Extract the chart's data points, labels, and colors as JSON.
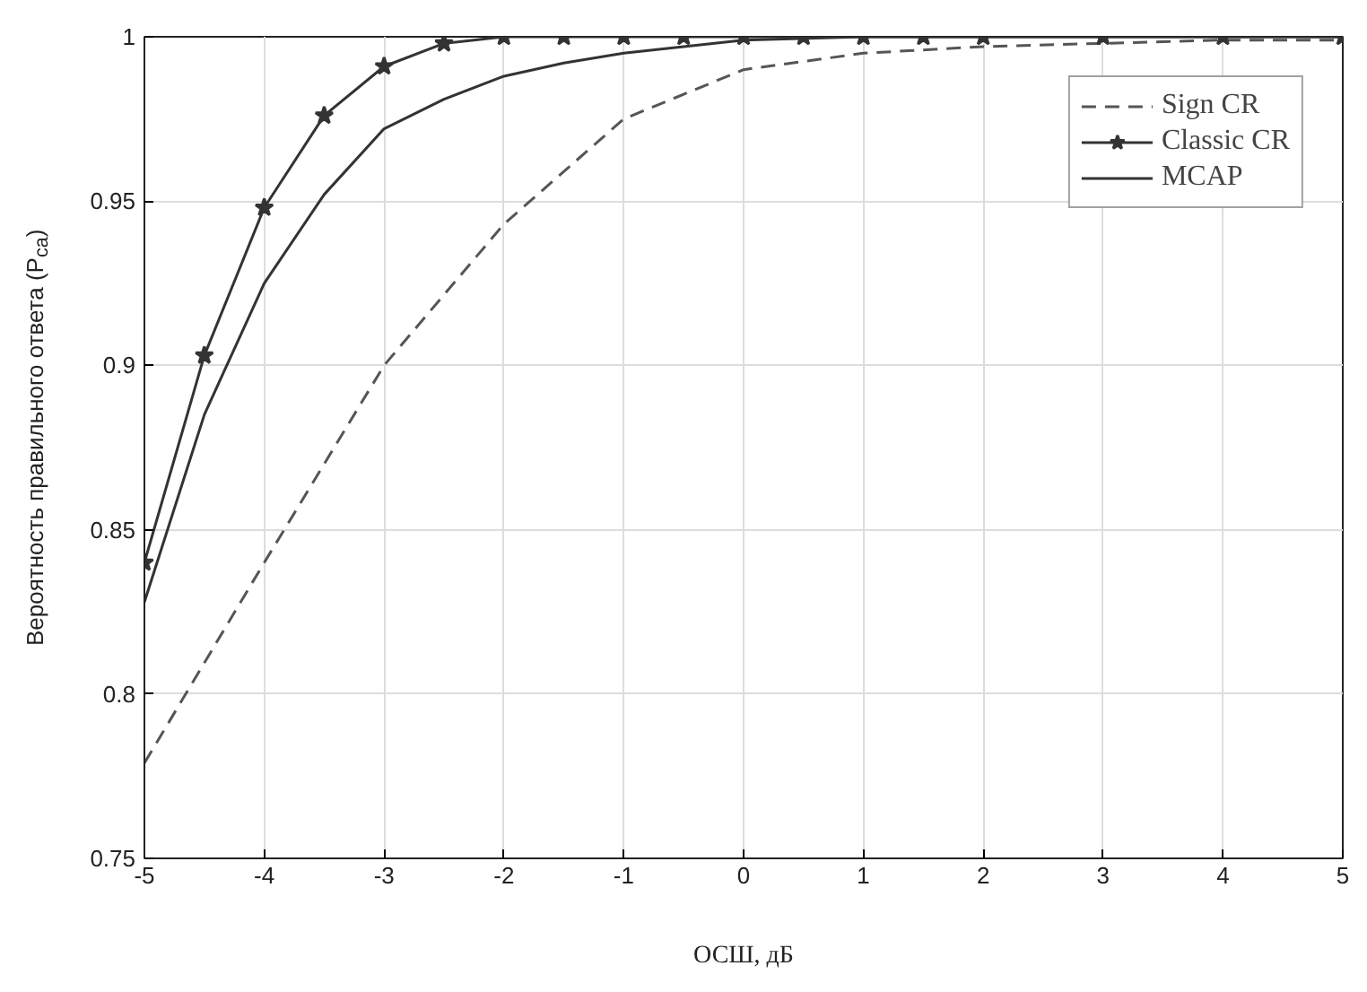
{
  "chart_data": {
    "type": "line",
    "xlabel": "ОСШ, дБ",
    "ylabel": "Вероятность правильного ответа (P$_{ca}$)",
    "xlim": [
      -5,
      5
    ],
    "ylim": [
      0.75,
      1
    ],
    "xticks": [
      -5,
      -4,
      -3,
      -2,
      -1,
      0,
      1,
      2,
      3,
      4,
      5
    ],
    "yticks": [
      0.75,
      0.8,
      0.85,
      0.9,
      0.95,
      1
    ],
    "grid": true,
    "legend": "top right",
    "series": [
      {
        "name": "Sign CR",
        "color": "#555555",
        "line_style": "dashed",
        "marker": "none",
        "x": [
          -5,
          -4,
          -3,
          -2,
          -1,
          0,
          1,
          2,
          3,
          4,
          5
        ],
        "values": [
          0.779,
          0.84,
          0.9,
          0.943,
          0.975,
          0.99,
          0.995,
          0.997,
          0.998,
          0.999,
          0.999
        ]
      },
      {
        "name": "Classic CR",
        "color": "#333333",
        "line_style": "solid",
        "marker": "star",
        "x": [
          -5,
          -4.5,
          -4,
          -3.5,
          -3,
          -2.5,
          -2,
          -1.5,
          -1,
          -0.5,
          0,
          0.5,
          1,
          1.5,
          2,
          3,
          4,
          5
        ],
        "values": [
          0.84,
          0.903,
          0.948,
          0.976,
          0.991,
          0.998,
          1,
          1,
          1,
          1,
          1,
          1,
          1,
          1,
          1,
          1,
          1,
          1
        ]
      },
      {
        "name": "MCAP",
        "color": "#333333",
        "line_style": "solid",
        "marker": "none",
        "x": [
          -5,
          -4.5,
          -4,
          -3.5,
          -3,
          -2.5,
          -2,
          -1.5,
          -1,
          -0.5,
          0,
          1,
          2,
          5
        ],
        "values": [
          0.828,
          0.885,
          0.925,
          0.952,
          0.972,
          0.981,
          0.988,
          0.992,
          0.995,
          0.997,
          0.999,
          1,
          1,
          1
        ]
      }
    ]
  }
}
